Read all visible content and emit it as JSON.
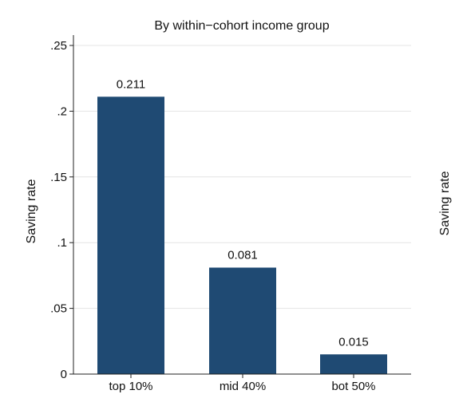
{
  "chart_data": {
    "type": "bar",
    "title": "By within−cohort income group",
    "ylabel": "Saving rate",
    "right_panel_ylabel": "Saving rate",
    "categories": [
      "top 10%",
      "mid 40%",
      "bot 50%"
    ],
    "values": [
      0.211,
      0.081,
      0.015
    ],
    "data_labels": [
      "0.211",
      "0.081",
      "0.015"
    ],
    "ylim": [
      0,
      0.25
    ],
    "yticks": [
      0,
      0.05,
      0.1,
      0.15,
      0.2,
      0.25
    ],
    "ytick_labels": [
      "0",
      ".05",
      ".1",
      ".15",
      ".2",
      ".25"
    ],
    "grid": true,
    "bar_color": "#1f4a73"
  }
}
